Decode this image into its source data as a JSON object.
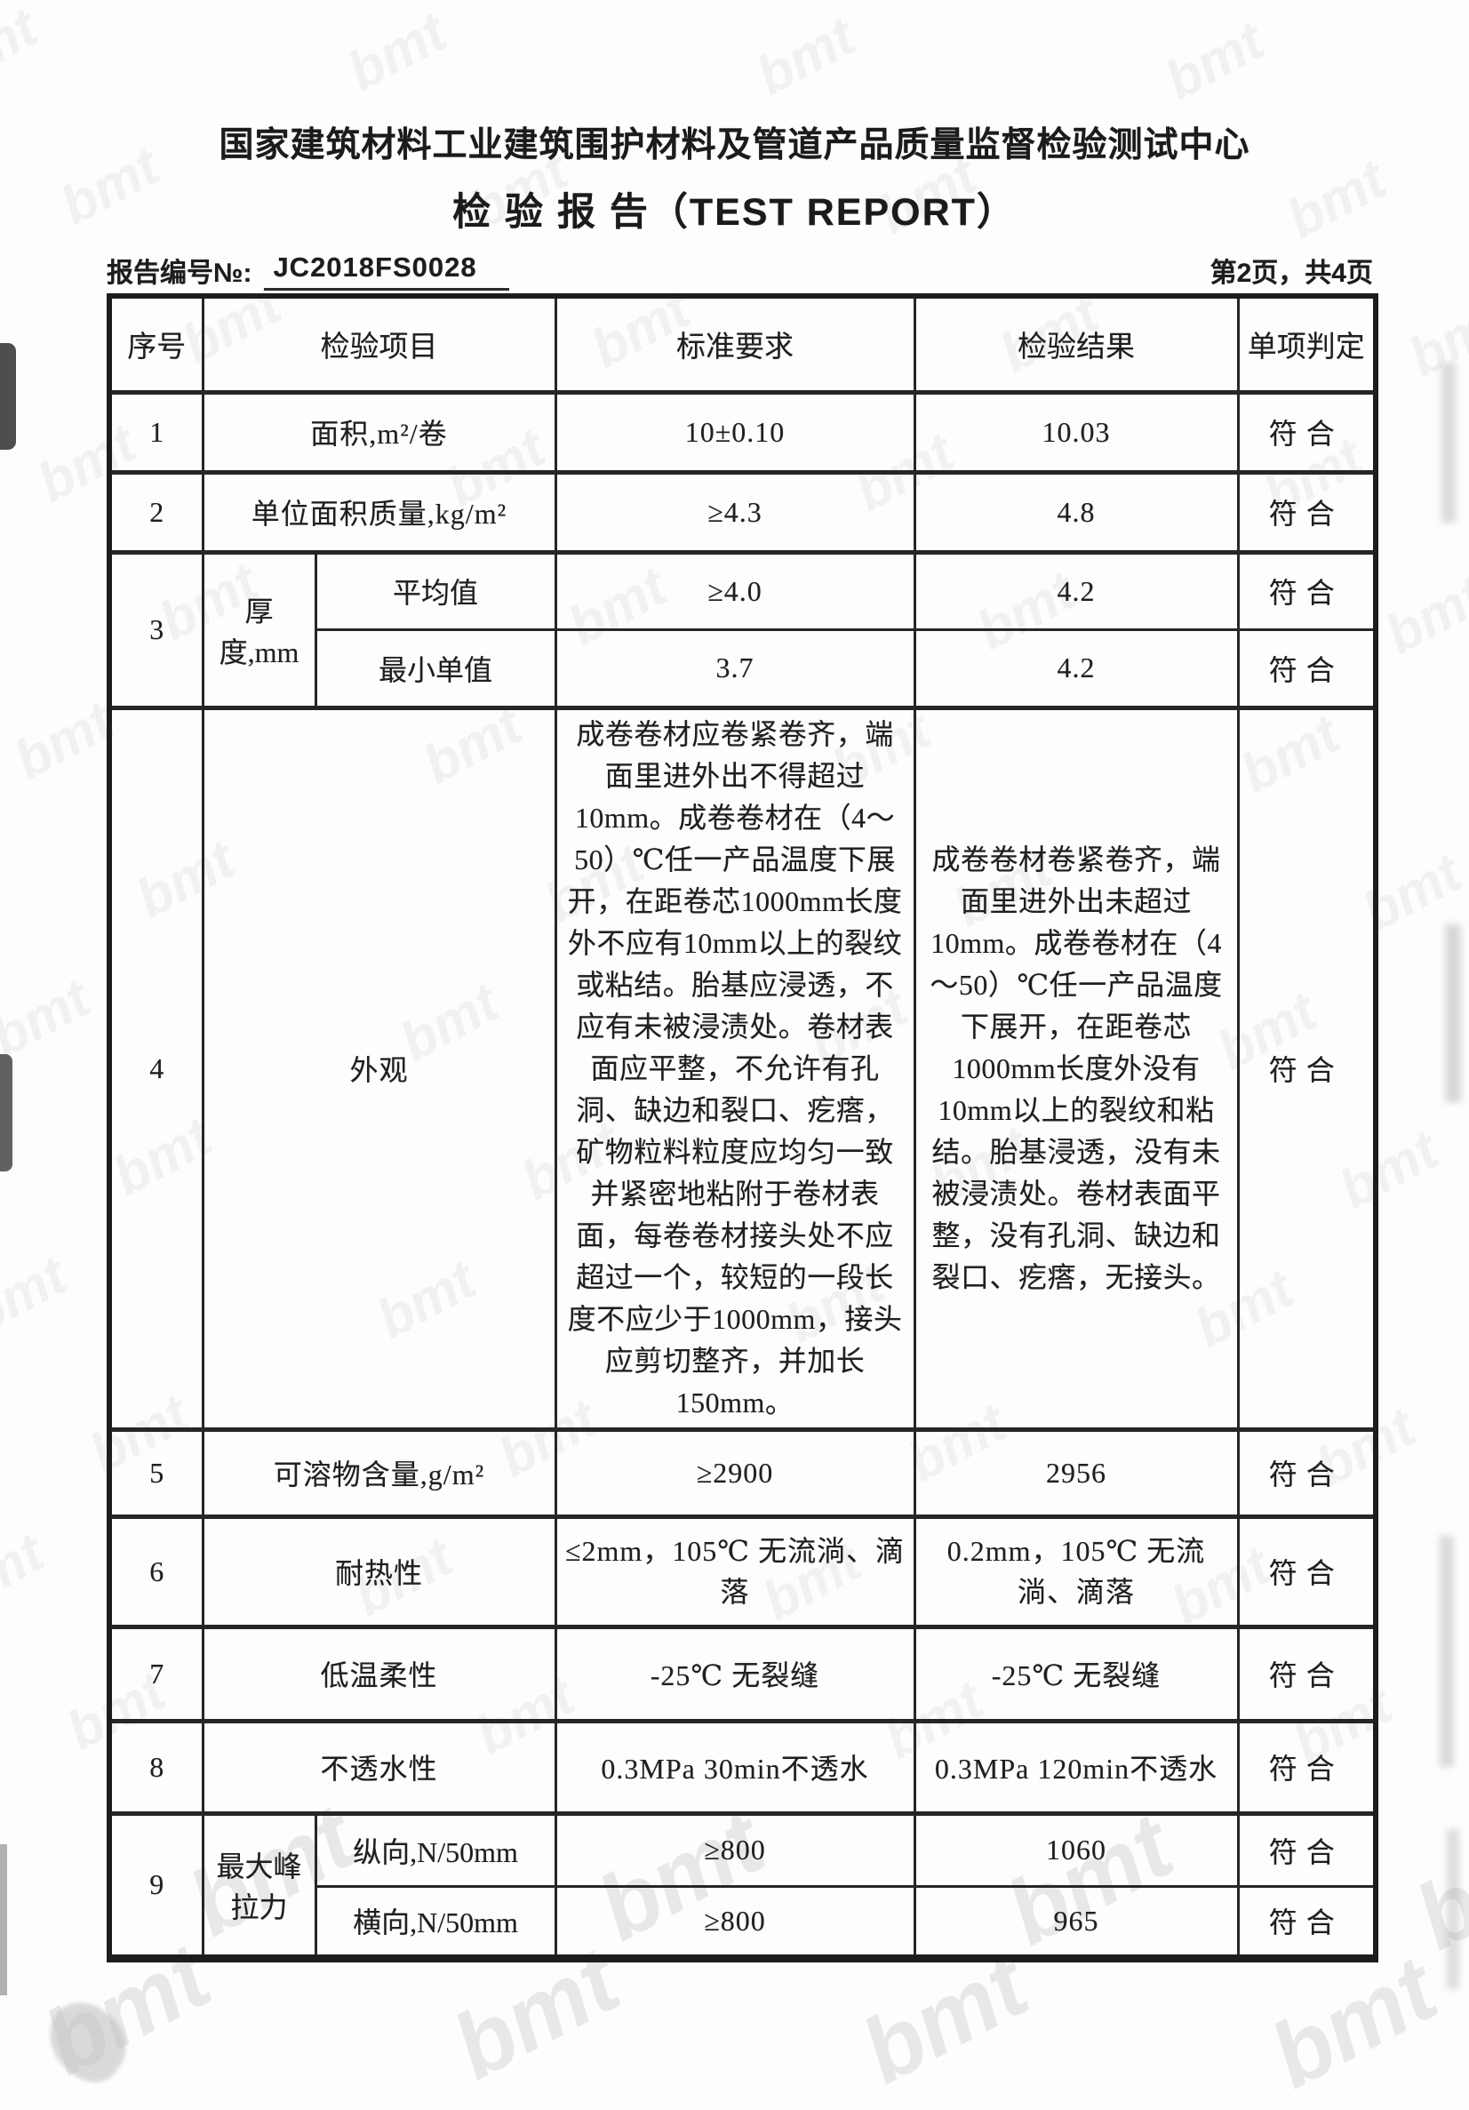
{
  "header": {
    "title": "国家建筑材料工业建筑围护材料及管道产品质量监督检验测试中心",
    "subtitle": "检 验 报 告（TEST REPORT）",
    "report_no_label": "报告编号№:",
    "report_no": "JC2018FS0028",
    "page_info": "第2页，共4页"
  },
  "watermark": {
    "text": "bmt"
  },
  "table": {
    "columns": [
      "序号",
      "检验项目",
      "标准要求",
      "检验结果",
      "单项判定"
    ],
    "rows": [
      {
        "no": "1",
        "item": "面积,m²/卷",
        "standard": "10±0.10",
        "result": "10.03",
        "verdict": "符合"
      },
      {
        "no": "2",
        "item": "单位面积质量,kg/m²",
        "standard": "≥4.3",
        "result": "4.8",
        "verdict": "符合"
      },
      {
        "no": "3",
        "item": "厚度,mm",
        "sub_rows": [
          {
            "sub_item": "平均值",
            "standard": "≥4.0",
            "result": "4.2",
            "verdict": "符合"
          },
          {
            "sub_item": "最小单值",
            "standard": "3.7",
            "result": "4.2",
            "verdict": "符合"
          }
        ]
      },
      {
        "no": "4",
        "item": "外观",
        "standard": "成卷卷材应卷紧卷齐，端面里进外出不得超过10mm。成卷卷材在（4～50）℃任一产品温度下展开，在距卷芯1000mm长度外不应有10mm以上的裂纹或粘结。胎基应浸透，不应有未被浸渍处。卷材表面应平整，不允许有孔洞、缺边和裂口、疙瘩，矿物粒料粒度应均匀一致并紧密地粘附于卷材表面，每卷卷材接头处不应超过一个，较短的一段长度不应少于1000mm，接头应剪切整齐，并加长150mm。",
        "result": "成卷卷材卷紧卷齐，端面里进外出未超过10mm。成卷卷材在（4～50）℃任一产品温度下展开，在距卷芯1000mm长度外没有10mm以上的裂纹和粘结。胎基浸透，没有未被浸渍处。卷材表面平整，没有孔洞、缺边和裂口、疙瘩，无接头。",
        "verdict": "符合"
      },
      {
        "no": "5",
        "item": "可溶物含量,g/m²",
        "standard": "≥2900",
        "result": "2956",
        "verdict": "符合"
      },
      {
        "no": "6",
        "item": "耐热性",
        "standard": "≤2mm，105℃ 无流淌、滴落",
        "result": "0.2mm，105℃ 无流淌、滴落",
        "verdict": "符合"
      },
      {
        "no": "7",
        "item": "低温柔性",
        "standard": "-25℃ 无裂缝",
        "result": "-25℃ 无裂缝",
        "verdict": "符合"
      },
      {
        "no": "8",
        "item": "不透水性",
        "standard": "0.3MPa 30min不透水",
        "result": "0.3MPa 120min不透水",
        "verdict": "符合"
      },
      {
        "no": "9",
        "item": "最大峰\n拉力",
        "sub_rows": [
          {
            "sub_item": "纵向,N/50mm",
            "standard": "≥800",
            "result": "1060",
            "verdict": "符合"
          },
          {
            "sub_item": "横向,N/50mm",
            "standard": "≥800",
            "result": "965",
            "verdict": "符合"
          }
        ]
      }
    ]
  }
}
